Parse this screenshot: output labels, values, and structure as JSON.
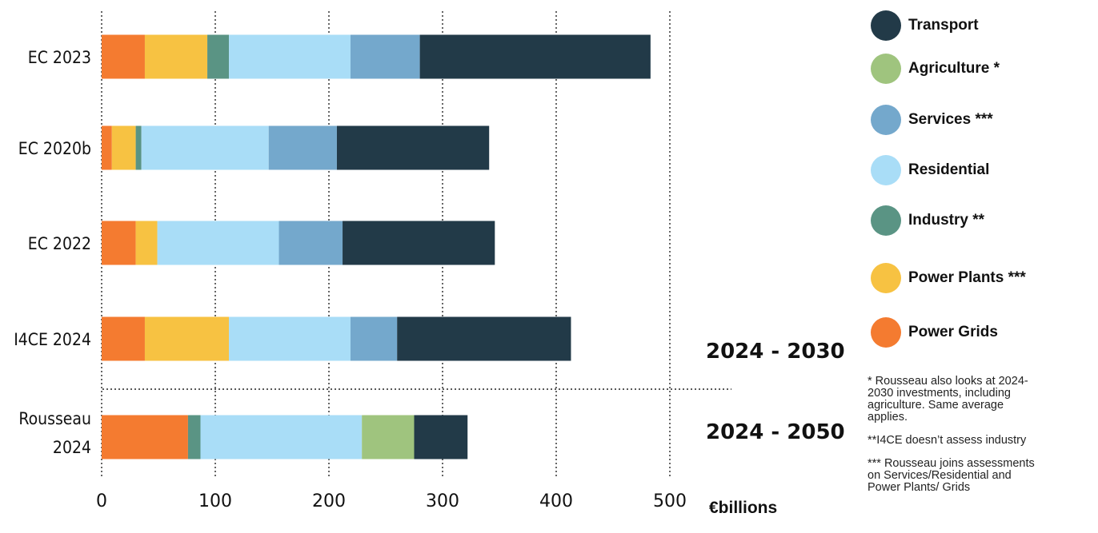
{
  "chart_data": {
    "type": "bar",
    "orientation": "horizontal",
    "stacked": true,
    "categories": [
      "EC 2023",
      "EC 2020b",
      "EC 2022",
      "I4CE 2024",
      "Rousseau 2024"
    ],
    "series": [
      {
        "name": "Power Grids",
        "color": "#f47b30",
        "values": [
          38,
          9,
          30,
          38,
          76
        ]
      },
      {
        "name": "Power Plants ***",
        "color": "#f7c242",
        "values": [
          55,
          21,
          19,
          74,
          0
        ]
      },
      {
        "name": "Industry **",
        "color": "#5a9484",
        "values": [
          19,
          5,
          0,
          0,
          11
        ]
      },
      {
        "name": "Residential",
        "color": "#a9ddf7",
        "values": [
          107,
          112,
          107,
          107,
          142
        ]
      },
      {
        "name": "Services ***",
        "color": "#74a8cc",
        "values": [
          61,
          60,
          56,
          41,
          0
        ]
      },
      {
        "name": "Agriculture *",
        "color": "#9fc47e",
        "values": [
          0,
          0,
          0,
          0,
          46
        ]
      },
      {
        "name": "Transport",
        "color": "#223a48",
        "values": [
          203,
          134,
          134,
          153,
          47
        ]
      }
    ],
    "xlim": [
      0,
      500
    ],
    "xticks": [
      "0",
      "100",
      "200",
      "300",
      "400",
      "500"
    ],
    "xlabel": "€billions",
    "grid": "vertical dotted",
    "period_labels": [
      "2024 - 2030",
      "2024 - 2050"
    ],
    "legend_order": [
      "Transport",
      "Agriculture *",
      "Services ***",
      "Residential",
      "Industry **",
      "Power Plants ***",
      "Power Grids"
    ],
    "legend_position": "right"
  },
  "legend": [
    {
      "label": "Transport",
      "color": "#223a48"
    },
    {
      "label": "Agriculture *",
      "color": "#9fc47e"
    },
    {
      "label": "Services ***",
      "color": "#74a8cc"
    },
    {
      "label": "Residential",
      "color": "#a9ddf7"
    },
    {
      "label": "Industry **",
      "color": "#5a9484"
    },
    {
      "label": "Power Plants ***",
      "color": "#f7c242"
    },
    {
      "label": "Power Grids",
      "color": "#f47b30"
    }
  ],
  "notes": [
    "* Rousseau also looks at 2024-\n2030 investments, including\nagriculture. Same average\napplies.",
    "**I4CE doesn’t assess industry",
    "***  Rousseau joins assessments\non Services/Residential and\nPower Plants/ Grids"
  ]
}
